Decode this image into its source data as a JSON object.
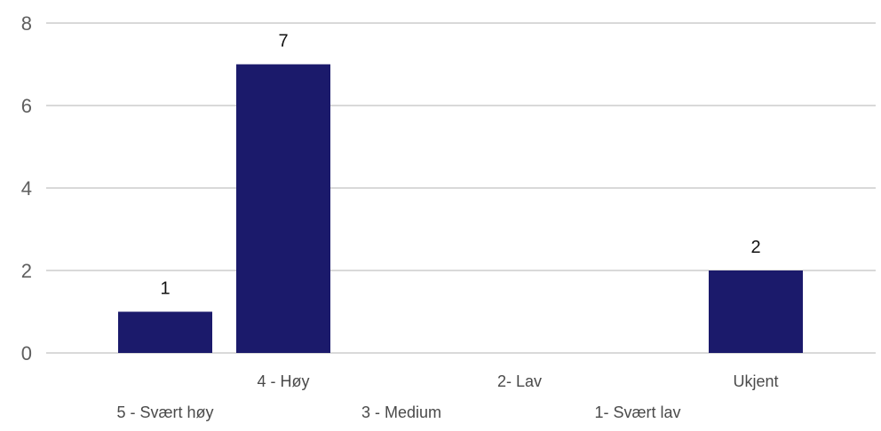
{
  "chart_data": {
    "type": "bar",
    "categories": [
      "5 - Svært høy",
      "4 - Høy",
      "3 - Medium",
      "2- Lav",
      "1- Svært lav",
      "Ukjent"
    ],
    "values": [
      1,
      7,
      0,
      0,
      0,
      2
    ],
    "data_labels": [
      "1",
      "7",
      "",
      "",
      "",
      "2"
    ],
    "ylim": [
      0,
      8
    ],
    "yticks": [
      0,
      2,
      4,
      6,
      8
    ],
    "grid": true,
    "bar_color": "#1b1a6b",
    "grid_color": "#d9d9d9",
    "title": "",
    "xlabel": "",
    "ylabel": ""
  }
}
